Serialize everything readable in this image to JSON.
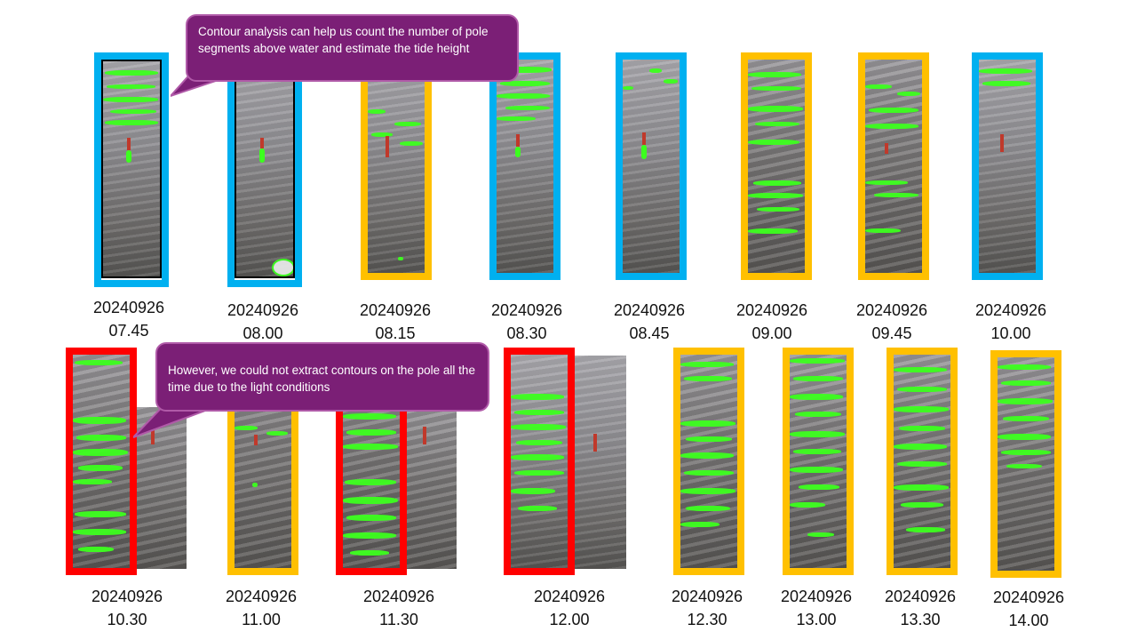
{
  "callouts": {
    "top": "Contour analysis can help us count the number of pole segments above water and estimate the tide height",
    "bottom": "However, we could not extract contours on the pole all the time due to the light conditions"
  },
  "colors": {
    "blue": "#00b0f0",
    "yellow": "#ffc000",
    "red": "#ff0000",
    "contour_green": "#3cff1e",
    "callout_purple": "#7b1f76"
  },
  "top_row": [
    {
      "date": "20240926",
      "time": "07.45",
      "frame_color": "blue"
    },
    {
      "date": "20240926",
      "time": "08.00",
      "frame_color": "blue"
    },
    {
      "date": "20240926",
      "time": "08.15",
      "frame_color": "yellow"
    },
    {
      "date": "20240926",
      "time": "08.30",
      "frame_color": "blue"
    },
    {
      "date": "20240926",
      "time": "08.45",
      "frame_color": "blue"
    },
    {
      "date": "20240926",
      "time": "09.00",
      "frame_color": "yellow"
    },
    {
      "date": "20240926",
      "time": "09.45",
      "frame_color": "yellow"
    },
    {
      "date": "20240926",
      "time": "10.00",
      "frame_color": "blue"
    }
  ],
  "bottom_row": [
    {
      "date": "20240926",
      "time": "10.30",
      "frame_color": "red"
    },
    {
      "date": "20240926",
      "time": "11.00",
      "frame_color": "yellow"
    },
    {
      "date": "20240926",
      "time": "11.30",
      "frame_color": "red"
    },
    {
      "date": "20240926",
      "time": "12.00",
      "frame_color": "red"
    },
    {
      "date": "20240926",
      "time": "12.30",
      "frame_color": "yellow"
    },
    {
      "date": "20240926",
      "time": "13.00",
      "frame_color": "yellow"
    },
    {
      "date": "20240926",
      "time": "13.30",
      "frame_color": "yellow"
    },
    {
      "date": "20240926",
      "time": "14.00",
      "frame_color": "yellow"
    }
  ]
}
